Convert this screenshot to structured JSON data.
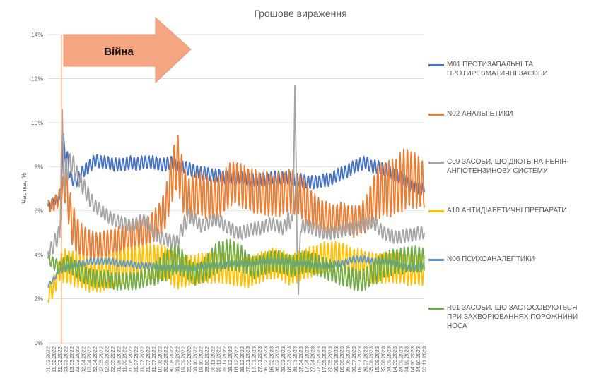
{
  "chart_data": {
    "type": "line",
    "title": "Грошове вираження",
    "ylabel": "Частка, %",
    "xlabel": "",
    "ylim": [
      0,
      14
    ],
    "yticks": [
      "0%",
      "2%",
      "4%",
      "6%",
      "8%",
      "10%",
      "12%",
      "14%"
    ],
    "grid": true,
    "legend_position": "right",
    "x": [
      "01.02.2022",
      "11.02.2022",
      "21.02.2022",
      "03.03.2022",
      "13.03.2022",
      "23.03.2022",
      "02.04.2022",
      "12.04.2022",
      "22.04.2022",
      "02.05.2022",
      "12.05.2022",
      "22.05.2022",
      "01.06.2022",
      "11.06.2022",
      "21.06.2022",
      "01.07.2022",
      "11.07.2022",
      "21.07.2022",
      "31.07.2022",
      "10.08.2022",
      "20.08.2022",
      "30.08.2022",
      "09.09.2022",
      "19.09.2022",
      "29.09.2022",
      "09.10.2022",
      "19.10.2022",
      "29.10.2022",
      "08.11.2022",
      "18.11.2022",
      "28.11.2022",
      "08.12.2022",
      "18.12.2022",
      "28.12.2022",
      "07.01.2023",
      "17.01.2023",
      "27.01.2023",
      "06.02.2023",
      "16.02.2023",
      "26.02.2023",
      "08.03.2023",
      "18.03.2023",
      "28.03.2023",
      "07.04.2023",
      "17.04.2023",
      "27.04.2023",
      "07.05.2023",
      "17.05.2023",
      "27.05.2023",
      "06.06.2023",
      "16.06.2023",
      "26.06.2023",
      "06.07.2023",
      "16.07.2023",
      "26.07.2023",
      "05.08.2023",
      "15.08.2023",
      "25.08.2023",
      "04.09.2023",
      "14.09.2023",
      "24.09.2023",
      "04.10.2023",
      "14.10.2023",
      "24.10.2023",
      "03.11.2023"
    ],
    "series": [
      {
        "name": "M01 ПРОТИЗАПАЛЬНІ ТА ПРОТИРЕВМАТИЧНІ ЗАСОБИ",
        "color": "#4472C4",
        "values": [
          6.2,
          6.4,
          6.6,
          8.6,
          7.4,
          7.4,
          7.8,
          8.0,
          8.3,
          8.2,
          8.2,
          8.1,
          8.1,
          8.1,
          8.2,
          8.1,
          8.2,
          8.2,
          8.2,
          8.1,
          8.1,
          8.2,
          8.0,
          8.0,
          7.9,
          7.8,
          7.7,
          7.7,
          7.6,
          7.6,
          7.5,
          7.5,
          7.5,
          7.5,
          7.4,
          7.4,
          7.4,
          7.4,
          7.5,
          7.5,
          7.5,
          7.5,
          7.4,
          7.4,
          7.3,
          7.3,
          7.3,
          7.4,
          7.4,
          7.6,
          7.7,
          7.8,
          8.0,
          8.1,
          8.2,
          8.0,
          8.0,
          7.9,
          7.8,
          7.6,
          7.5,
          7.3,
          7.1,
          7.0,
          7.0
        ],
        "amp": [
          0.2,
          0.2,
          0.2,
          0.5,
          0.3,
          0.3,
          0.3,
          0.3,
          0.3,
          0.3,
          0.3,
          0.3,
          0.3,
          0.3,
          0.3,
          0.3,
          0.3,
          0.3,
          0.3,
          0.3,
          0.3,
          0.3,
          0.3,
          0.3,
          0.3,
          0.3,
          0.3,
          0.3,
          0.3,
          0.3,
          0.3,
          0.3,
          0.3,
          0.3,
          0.3,
          0.3,
          0.3,
          0.3,
          0.3,
          0.3,
          0.3,
          0.3,
          0.3,
          0.3,
          0.3,
          0.3,
          0.3,
          0.3,
          0.3,
          0.3,
          0.3,
          0.3,
          0.3,
          0.3,
          0.3,
          0.3,
          0.3,
          0.3,
          0.3,
          0.3,
          0.3,
          0.3,
          0.3,
          0.3,
          0.3
        ]
      },
      {
        "name": "N02 АНАЛЬГЕТИКИ",
        "color": "#ED7D31",
        "values": [
          6.2,
          6.3,
          6.6,
          7.2,
          5.5,
          4.8,
          4.5,
          4.4,
          4.3,
          4.4,
          4.4,
          4.5,
          4.6,
          4.7,
          4.8,
          4.9,
          5.0,
          5.1,
          5.3,
          5.6,
          6.1,
          7.5,
          8.3,
          7.0,
          6.5,
          6.7,
          6.8,
          6.6,
          6.5,
          6.6,
          6.9,
          7.2,
          7.3,
          7.1,
          7.0,
          6.9,
          6.8,
          6.8,
          6.7,
          6.7,
          6.8,
          6.9,
          6.8,
          6.7,
          6.3,
          6.0,
          5.8,
          5.7,
          5.6,
          5.6,
          5.7,
          5.6,
          5.5,
          5.6,
          5.8,
          6.3,
          6.8,
          7.0,
          7.0,
          7.1,
          7.3,
          7.5,
          7.4,
          7.3,
          7.2
        ],
        "amp": [
          0.3,
          0.3,
          0.4,
          0.9,
          1.0,
          0.9,
          0.8,
          0.8,
          0.7,
          0.7,
          0.7,
          0.7,
          0.7,
          0.7,
          0.7,
          0.7,
          0.7,
          0.7,
          0.7,
          0.8,
          0.9,
          1.2,
          1.3,
          1.1,
          1.0,
          1.0,
          1.0,
          1.0,
          1.0,
          1.0,
          1.0,
          1.0,
          1.0,
          1.0,
          1.0,
          1.0,
          1.0,
          1.0,
          1.0,
          1.0,
          1.0,
          1.0,
          1.0,
          1.0,
          1.0,
          0.9,
          0.8,
          0.8,
          0.7,
          0.7,
          0.7,
          0.7,
          0.7,
          0.7,
          0.8,
          1.0,
          1.2,
          1.3,
          1.3,
          1.3,
          1.4,
          1.4,
          1.3,
          1.2,
          1.1
        ]
      },
      {
        "name": "C09 ЗАСОБИ, ЩО ДІЮТЬ НА РЕНІН-АНГІОТЕНЗИНОВУ СИСТЕМУ",
        "color": "#A5A5A5",
        "values": [
          4.0,
          4.5,
          5.0,
          7.8,
          8.2,
          7.6,
          7.1,
          6.6,
          6.2,
          6.0,
          5.8,
          5.6,
          5.5,
          5.4,
          5.3,
          5.4,
          5.6,
          5.4,
          5.0,
          4.8,
          4.7,
          4.6,
          4.6,
          5.3,
          5.8,
          5.6,
          5.3,
          5.4,
          5.6,
          5.6,
          5.3,
          5.2,
          5.0,
          5.0,
          5.1,
          5.2,
          5.2,
          5.3,
          5.4,
          5.3,
          5.2,
          5.6,
          5.3,
          5.3,
          5.3,
          5.2,
          5.1,
          5.0,
          5.0,
          5.0,
          5.1,
          5.2,
          5.2,
          5.3,
          5.4,
          5.5,
          5.3,
          5.0,
          4.9,
          4.8,
          4.8,
          4.9,
          4.9,
          5.0,
          5.0
        ],
        "amp": [
          0.3,
          0.4,
          0.4,
          0.6,
          0.5,
          0.4,
          0.4,
          0.4,
          0.3,
          0.3,
          0.3,
          0.3,
          0.3,
          0.3,
          0.3,
          0.3,
          0.3,
          0.3,
          0.3,
          0.3,
          0.3,
          0.3,
          0.3,
          0.4,
          0.4,
          0.3,
          0.3,
          0.3,
          0.3,
          0.3,
          0.3,
          0.3,
          0.3,
          0.3,
          0.3,
          0.3,
          0.3,
          0.3,
          0.3,
          0.3,
          0.3,
          0.4,
          0.3,
          0.3,
          0.3,
          0.3,
          0.3,
          0.3,
          0.3,
          0.3,
          0.3,
          0.3,
          0.3,
          0.3,
          0.3,
          0.3,
          0.3,
          0.3,
          0.3,
          0.3,
          0.3,
          0.3,
          0.3,
          0.3,
          0.3
        ]
      },
      {
        "name": "A10 АНТИДІАБЕТИЧНІ ПРЕПАРАТИ",
        "color": "#FFC000",
        "values": [
          2.2,
          2.6,
          3.4,
          3.5,
          3.4,
          3.3,
          3.2,
          3.1,
          3.1,
          3.1,
          3.2,
          3.3,
          3.4,
          3.5,
          3.6,
          3.6,
          3.7,
          3.7,
          3.7,
          3.7,
          3.6,
          3.4,
          3.2,
          3.2,
          3.3,
          3.3,
          3.4,
          3.4,
          3.4,
          3.4,
          3.4,
          3.3,
          3.3,
          3.2,
          3.2,
          3.3,
          3.4,
          3.5,
          3.6,
          3.6,
          3.5,
          3.3,
          3.4,
          3.5,
          3.6,
          3.7,
          3.8,
          3.9,
          3.9,
          3.9,
          3.9,
          3.7,
          3.6,
          3.6,
          3.5,
          3.4,
          3.4,
          3.4,
          3.4,
          3.4,
          3.4,
          3.3,
          3.3,
          3.3,
          3.3
        ],
        "amp": [
          0.4,
          0.5,
          0.6,
          0.8,
          0.8,
          0.8,
          0.8,
          0.8,
          0.8,
          0.8,
          0.8,
          0.8,
          0.8,
          0.8,
          0.8,
          0.8,
          0.8,
          0.8,
          0.8,
          0.8,
          0.8,
          0.8,
          0.8,
          0.7,
          0.7,
          0.7,
          0.7,
          0.7,
          0.7,
          0.7,
          0.7,
          0.7,
          0.7,
          0.7,
          0.7,
          0.7,
          0.7,
          0.7,
          0.7,
          0.7,
          0.7,
          0.7,
          0.7,
          0.7,
          0.7,
          0.7,
          0.7,
          0.7,
          0.7,
          0.7,
          0.7,
          0.7,
          0.7,
          0.7,
          0.7,
          0.7,
          0.7,
          0.7,
          0.7,
          0.7,
          0.7,
          0.7,
          0.7,
          0.7,
          0.7
        ]
      },
      {
        "name": "N06 ПСИХОАНАЛЕПТИКИ",
        "color": "#5B9BD5",
        "values": [
          2.6,
          2.9,
          3.3,
          3.4,
          3.5,
          3.6,
          3.6,
          3.7,
          3.7,
          3.7,
          3.7,
          3.7,
          3.6,
          3.6,
          3.6,
          3.5,
          3.5,
          3.5,
          3.5,
          3.4,
          3.4,
          3.4,
          3.4,
          3.4,
          3.4,
          3.4,
          3.5,
          3.5,
          3.5,
          3.5,
          3.5,
          3.6,
          3.6,
          3.6,
          3.6,
          3.6,
          3.7,
          3.7,
          3.7,
          3.7,
          3.7,
          3.7,
          3.6,
          3.6,
          3.6,
          3.5,
          3.5,
          3.5,
          3.5,
          3.6,
          3.6,
          3.7,
          3.8,
          3.8,
          3.8,
          3.7,
          3.7,
          3.7,
          3.7,
          3.6,
          3.5,
          3.4,
          3.4,
          3.4,
          3.5
        ],
        "amp": [
          0.1,
          0.1,
          0.1,
          0.15,
          0.15,
          0.15,
          0.15,
          0.15,
          0.15,
          0.15,
          0.15,
          0.15,
          0.15,
          0.15,
          0.15,
          0.15,
          0.15,
          0.15,
          0.15,
          0.15,
          0.15,
          0.15,
          0.15,
          0.15,
          0.15,
          0.15,
          0.15,
          0.15,
          0.15,
          0.15,
          0.15,
          0.15,
          0.15,
          0.15,
          0.15,
          0.15,
          0.15,
          0.15,
          0.15,
          0.15,
          0.15,
          0.15,
          0.15,
          0.15,
          0.15,
          0.15,
          0.15,
          0.15,
          0.15,
          0.15,
          0.15,
          0.15,
          0.15,
          0.15,
          0.15,
          0.15,
          0.15,
          0.15,
          0.15,
          0.15,
          0.15,
          0.15,
          0.15,
          0.15,
          0.15
        ]
      },
      {
        "name": "R01 ЗАСОБИ, ЩО ЗАСТОСОВУЮТЬСЯ ПРИ ЗАХВОРЮВАННЯХ ПОРОЖНИНИ НОСА",
        "color": "#70AD47",
        "values": [
          3.8,
          3.6,
          3.4,
          3.6,
          3.5,
          3.3,
          3.1,
          3.0,
          2.9,
          2.9,
          2.9,
          2.8,
          2.8,
          2.8,
          2.8,
          2.8,
          2.9,
          3.0,
          3.1,
          3.3,
          3.5,
          3.7,
          3.8,
          3.6,
          3.3,
          3.1,
          3.2,
          3.4,
          3.7,
          3.9,
          4.0,
          4.0,
          3.9,
          3.8,
          3.6,
          3.4,
          3.5,
          3.6,
          3.7,
          3.7,
          3.6,
          3.5,
          3.5,
          3.6,
          3.7,
          3.6,
          3.5,
          3.4,
          3.3,
          3.2,
          3.1,
          3.0,
          2.9,
          2.8,
          2.9,
          3.1,
          3.3,
          3.5,
          3.6,
          3.7,
          3.7,
          3.8,
          3.8,
          3.8,
          3.7
        ],
        "amp": [
          0.2,
          0.3,
          0.3,
          0.4,
          0.4,
          0.4,
          0.4,
          0.4,
          0.4,
          0.4,
          0.4,
          0.4,
          0.4,
          0.4,
          0.4,
          0.4,
          0.4,
          0.4,
          0.5,
          0.6,
          0.7,
          0.7,
          0.7,
          0.6,
          0.5,
          0.5,
          0.5,
          0.6,
          0.7,
          0.7,
          0.7,
          0.7,
          0.7,
          0.6,
          0.5,
          0.5,
          0.5,
          0.5,
          0.5,
          0.5,
          0.5,
          0.5,
          0.5,
          0.5,
          0.5,
          0.5,
          0.5,
          0.5,
          0.5,
          0.5,
          0.5,
          0.5,
          0.5,
          0.5,
          0.5,
          0.5,
          0.6,
          0.6,
          0.6,
          0.6,
          0.6,
          0.6,
          0.6,
          0.6,
          0.6
        ]
      }
    ],
    "spikes": [
      {
        "series": 2,
        "x": "25.02.2022",
        "value": 10.6
      },
      {
        "series": 0,
        "x": "27.02.2022",
        "value": 9.5
      },
      {
        "series": 2,
        "x": "28.03.2023",
        "value": 11.7
      },
      {
        "series": 2,
        "x": "03.04.2023",
        "value": 2.2
      }
    ],
    "annotation": {
      "text": "Війна",
      "marker_x": "24.02.2022",
      "arrow_color": "#F4A582"
    }
  }
}
